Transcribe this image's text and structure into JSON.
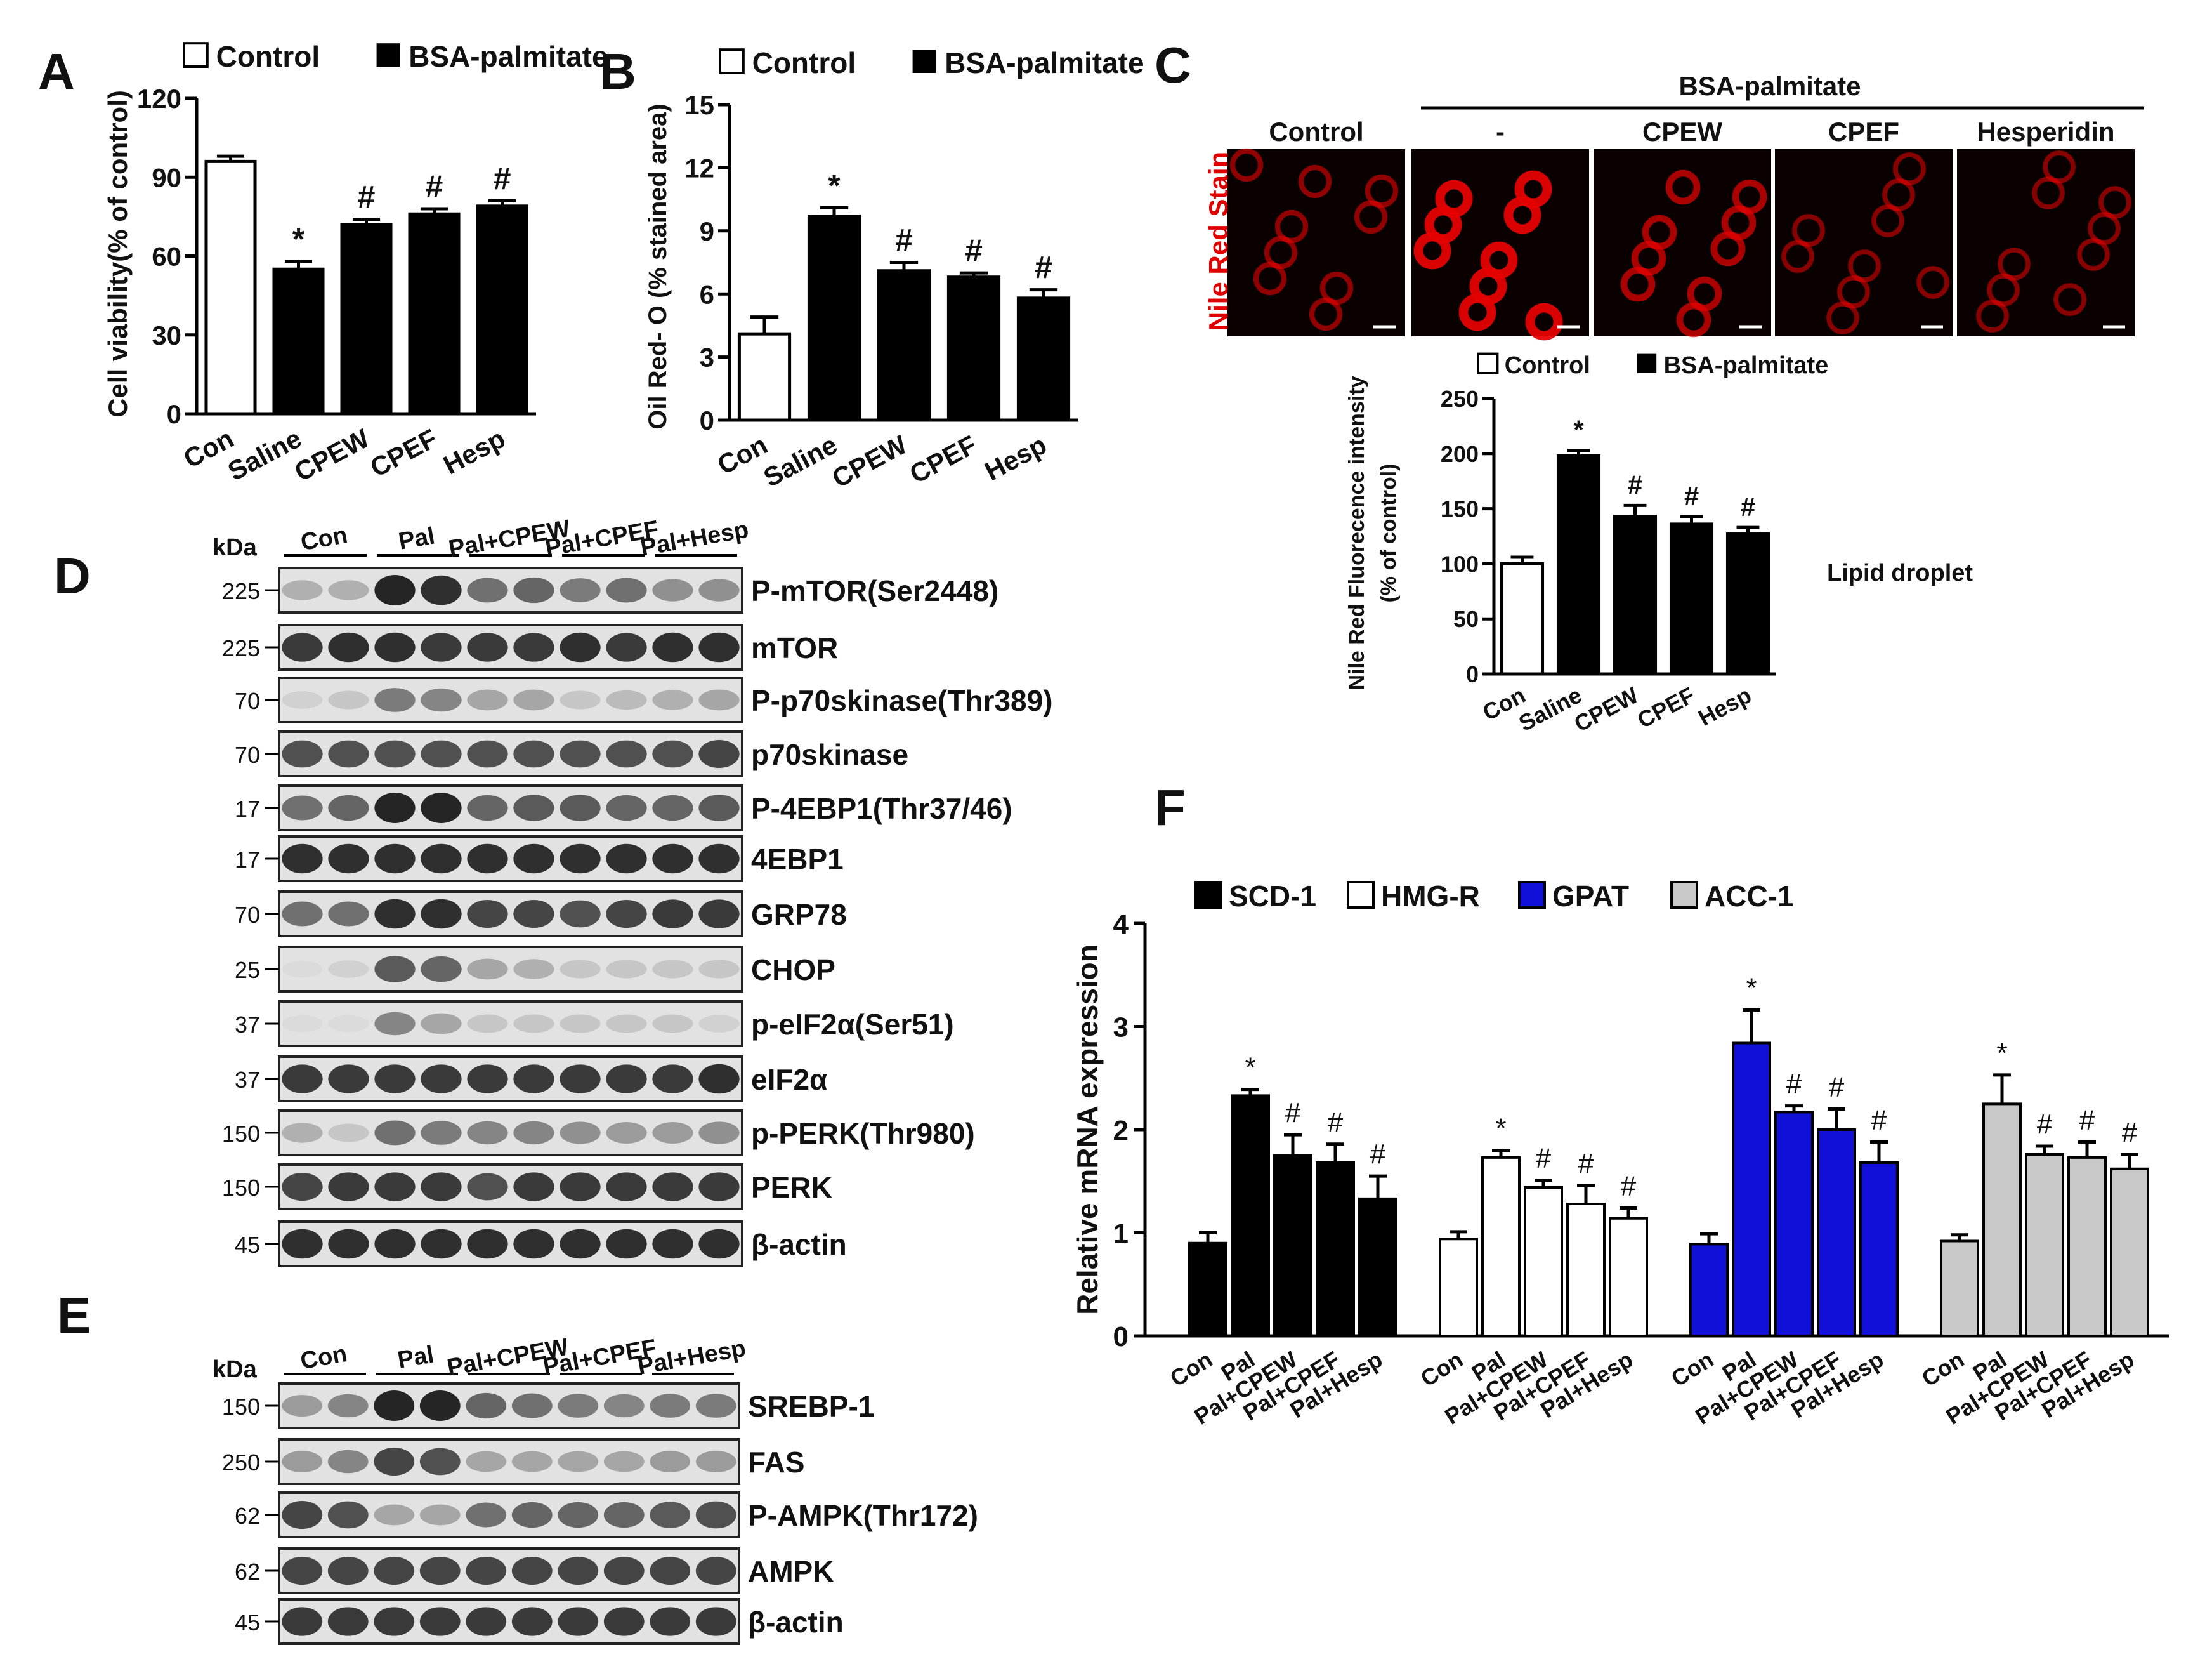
{
  "panel_letters": {
    "A": "A",
    "B": "B",
    "C": "C",
    "D": "D",
    "E": "E",
    "F": "F"
  },
  "legend": {
    "control": "Control",
    "treat": "BSA-palmitate"
  },
  "colors": {
    "scd1": "#000000",
    "hmgr": "#ffffff",
    "gpat": "#1010d8",
    "acc1": "#c8c8c8",
    "red": "#e00000"
  },
  "chart_data": [
    {
      "id": "A",
      "type": "bar",
      "ylabel": "Cell viability(% of control)",
      "xlabel": "",
      "categories": [
        "Con",
        "Saline",
        "CPEW",
        "CPEF",
        "Hesp"
      ],
      "values": [
        96,
        55,
        72,
        76,
        79
      ],
      "errors": [
        2,
        3,
        2,
        2,
        2
      ],
      "fill": [
        "white",
        "black",
        "black",
        "black",
        "black"
      ],
      "marks": [
        "",
        "*",
        "#",
        "#",
        "#"
      ],
      "ylim": [
        0,
        120
      ],
      "ticks": [
        0,
        30,
        60,
        90,
        120
      ]
    },
    {
      "id": "B",
      "type": "bar",
      "ylabel": "Oil Red- O (% stained area)",
      "xlabel": "",
      "categories": [
        "Con",
        "Saline",
        "CPEW",
        "CPEF",
        "Hesp"
      ],
      "values": [
        4.1,
        9.7,
        7.1,
        6.8,
        5.8
      ],
      "errors": [
        0.8,
        0.4,
        0.4,
        0.2,
        0.4
      ],
      "fill": [
        "white",
        "black",
        "black",
        "black",
        "black"
      ],
      "marks": [
        "",
        "*",
        "#",
        "#",
        "#"
      ],
      "ylim": [
        0,
        15
      ],
      "ticks": [
        0,
        3,
        6,
        9,
        12,
        15
      ]
    },
    {
      "id": "C",
      "type": "bar",
      "ylabel": "Nile Red Fluorecence intensity",
      "ylabel2": "(% of control)",
      "xlabel": "",
      "categories": [
        "Con",
        "Saline",
        "CPEW",
        "CPEF",
        "Hesp"
      ],
      "values": [
        100,
        198,
        143,
        136,
        127
      ],
      "errors": [
        6,
        5,
        10,
        7,
        6
      ],
      "fill": [
        "white",
        "black",
        "black",
        "black",
        "black"
      ],
      "marks": [
        "",
        "*",
        "#",
        "#",
        "#"
      ],
      "ylim": [
        0,
        250
      ],
      "ticks": [
        0,
        50,
        100,
        150,
        200,
        250
      ],
      "annotation": "Lipid droplet"
    },
    {
      "id": "F",
      "type": "bar",
      "ylabel": "Relative mRNA expression",
      "xlabel": "",
      "categories": [
        "Con",
        "Pal",
        "Pal+CPEW",
        "Pal+CPEF",
        "Pal+Hesp"
      ],
      "ylim": [
        0,
        4
      ],
      "ticks": [
        0,
        1,
        2,
        3,
        4
      ],
      "series": [
        {
          "name": "SCD-1",
          "values": [
            0.9,
            2.33,
            1.75,
            1.68,
            1.33
          ],
          "errors": [
            0.1,
            0.06,
            0.2,
            0.18,
            0.22
          ],
          "marks": [
            "",
            "*",
            "#",
            "#",
            "#"
          ]
        },
        {
          "name": "HMG-R",
          "values": [
            0.94,
            1.73,
            1.44,
            1.28,
            1.14
          ],
          "errors": [
            0.07,
            0.07,
            0.07,
            0.18,
            0.1
          ],
          "marks": [
            "",
            "*",
            "#",
            "#",
            "#"
          ]
        },
        {
          "name": "GPAT",
          "values": [
            0.89,
            2.84,
            2.17,
            2.0,
            1.68
          ],
          "errors": [
            0.1,
            0.32,
            0.06,
            0.2,
            0.2
          ],
          "marks": [
            "",
            "*",
            "#",
            "#",
            "#"
          ]
        },
        {
          "name": "ACC-1",
          "values": [
            0.92,
            2.25,
            1.76,
            1.73,
            1.62
          ],
          "errors": [
            0.06,
            0.28,
            0.08,
            0.15,
            0.14
          ],
          "marks": [
            "",
            "*",
            "#",
            "#",
            "#"
          ]
        }
      ]
    }
  ],
  "panelC_micro": {
    "header": "BSA-palmitate",
    "side_label": "Nile Red Stain",
    "columns": [
      "Control",
      "-",
      "CPEW",
      "CPEF",
      "Hesperidin"
    ],
    "intensity": [
      0.35,
      0.9,
      0.55,
      0.3,
      0.3
    ]
  },
  "panelD": {
    "kda": "kDa",
    "groups": [
      "Con",
      "Pal",
      "Pal+CPEW",
      "Pal+CPEF",
      "Pal+Hesp"
    ],
    "rows": [
      {
        "mw": "225",
        "name": "P-mTOR(Ser2448)",
        "level": [
          0.25,
          0.25,
          0.9,
          0.85,
          0.55,
          0.6,
          0.5,
          0.55,
          0.4,
          0.4
        ]
      },
      {
        "mw": "225",
        "name": "mTOR",
        "level": [
          0.8,
          0.85,
          0.85,
          0.8,
          0.8,
          0.8,
          0.85,
          0.8,
          0.85,
          0.85
        ]
      },
      {
        "mw": "70",
        "name": "P-p70skinase(Thr389)",
        "level": [
          0.1,
          0.15,
          0.5,
          0.45,
          0.3,
          0.3,
          0.15,
          0.2,
          0.25,
          0.3
        ]
      },
      {
        "mw": "70",
        "name": "p70skinase",
        "level": [
          0.7,
          0.7,
          0.7,
          0.7,
          0.7,
          0.7,
          0.7,
          0.7,
          0.7,
          0.75
        ]
      },
      {
        "mw": "17",
        "name": "P-4EBP1(Thr37/46)",
        "level": [
          0.55,
          0.6,
          0.9,
          0.9,
          0.6,
          0.65,
          0.65,
          0.6,
          0.6,
          0.65
        ]
      },
      {
        "mw": "17",
        "name": "4EBP1",
        "level": [
          0.85,
          0.85,
          0.85,
          0.85,
          0.85,
          0.85,
          0.85,
          0.85,
          0.85,
          0.85
        ]
      },
      {
        "mw": "70",
        "name": "GRP78",
        "level": [
          0.55,
          0.55,
          0.85,
          0.85,
          0.75,
          0.75,
          0.7,
          0.75,
          0.8,
          0.8
        ]
      },
      {
        "mw": "25",
        "name": "CHOP",
        "level": [
          0.05,
          0.1,
          0.65,
          0.6,
          0.3,
          0.25,
          0.15,
          0.15,
          0.15,
          0.15
        ]
      },
      {
        "mw": "37",
        "name": "p-eIF2α(Ser51)",
        "level": [
          0.05,
          0.05,
          0.45,
          0.3,
          0.15,
          0.15,
          0.15,
          0.15,
          0.15,
          0.1
        ]
      },
      {
        "mw": "37",
        "name": "eIF2α",
        "level": [
          0.8,
          0.8,
          0.8,
          0.8,
          0.8,
          0.8,
          0.8,
          0.8,
          0.8,
          0.85
        ]
      },
      {
        "mw": "150",
        "name": "p-PERK(Thr980)",
        "level": [
          0.25,
          0.15,
          0.55,
          0.5,
          0.45,
          0.45,
          0.4,
          0.35,
          0.35,
          0.4
        ]
      },
      {
        "mw": "150",
        "name": "PERK",
        "level": [
          0.75,
          0.8,
          0.8,
          0.8,
          0.7,
          0.8,
          0.8,
          0.8,
          0.8,
          0.8
        ]
      },
      {
        "mw": "45",
        "name": "β-actin",
        "level": [
          0.85,
          0.85,
          0.85,
          0.85,
          0.85,
          0.85,
          0.85,
          0.85,
          0.85,
          0.85
        ]
      }
    ]
  },
  "panelE": {
    "kda": "kDa",
    "groups": [
      "Con",
      "Pal",
      "Pal+CPEW",
      "Pal+CPEF",
      "Pal+Hesp"
    ],
    "rows": [
      {
        "mw": "150",
        "name": "SREBP-1",
        "level": [
          0.35,
          0.45,
          0.9,
          0.9,
          0.6,
          0.55,
          0.5,
          0.45,
          0.5,
          0.5
        ]
      },
      {
        "mw": "250",
        "name": "FAS",
        "level": [
          0.35,
          0.45,
          0.75,
          0.7,
          0.3,
          0.3,
          0.3,
          0.3,
          0.35,
          0.35
        ]
      },
      {
        "mw": "62",
        "name": "P-AMPK(Thr172)",
        "level": [
          0.75,
          0.7,
          0.3,
          0.3,
          0.55,
          0.6,
          0.6,
          0.6,
          0.65,
          0.7
        ]
      },
      {
        "mw": "62",
        "name": "AMPK",
        "level": [
          0.75,
          0.75,
          0.75,
          0.75,
          0.75,
          0.75,
          0.75,
          0.75,
          0.75,
          0.75
        ]
      },
      {
        "mw": "45",
        "name": "β-actin",
        "level": [
          0.8,
          0.8,
          0.8,
          0.8,
          0.8,
          0.8,
          0.8,
          0.8,
          0.8,
          0.8
        ]
      }
    ]
  }
}
